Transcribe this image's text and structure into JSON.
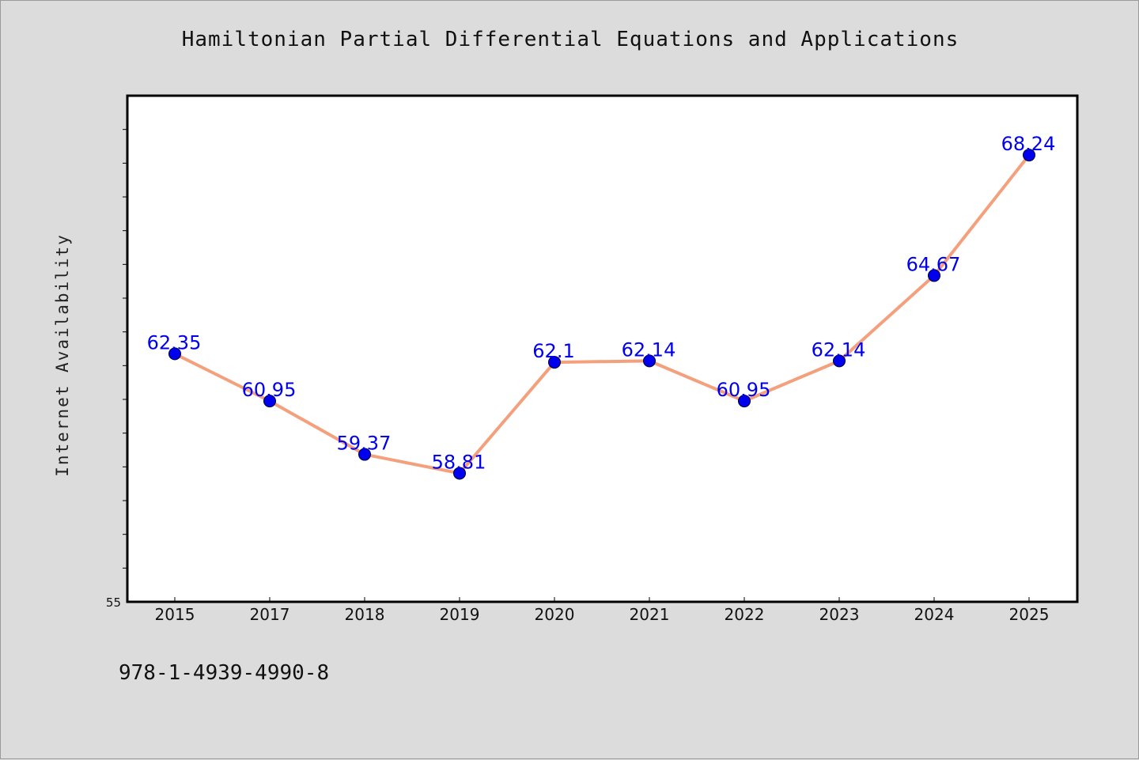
{
  "chart_data": {
    "type": "line",
    "title": "Hamiltonian Partial Differential Equations and Applications",
    "ylabel": "Internet Availability",
    "xlabel": "",
    "categories": [
      "2015",
      "2017",
      "2018",
      "2019",
      "2020",
      "2021",
      "2022",
      "2023",
      "2024",
      "2025"
    ],
    "series": [
      {
        "values": [
          62.35,
          60.95,
          59.37,
          58.81,
          62.1,
          62.14,
          60.95,
          62.14,
          64.67,
          68.24
        ]
      }
    ],
    "data_labels": [
      "62.35",
      "60.95",
      "59.37",
      "58.81",
      "62.1",
      "62.14",
      "60.95",
      "62.14",
      "64.67",
      "68.24"
    ],
    "ylim": [
      55,
      70
    ],
    "y_tick_step": 1,
    "y_tick_labels": [
      "55"
    ],
    "grid": false,
    "colors": {
      "line": "#f4a07c",
      "marker": "#0000ee",
      "label": "#0000ee",
      "background": "#dcdcdc",
      "plot_background": "#ffffff"
    }
  },
  "footer": {
    "isbn": "978-1-4939-4990-8"
  }
}
